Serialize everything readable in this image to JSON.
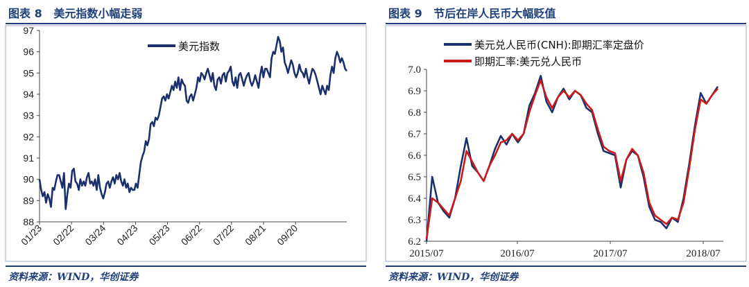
{
  "left": {
    "title": "图表 8   美元指数小幅走弱",
    "source": "资料来源：WIND，华创证券",
    "chart_data": {
      "type": "line",
      "series": [
        {
          "name": "美元指数",
          "color": "#1a2f6b",
          "values": [
            90.0,
            89.5,
            89.2,
            89.4,
            88.9,
            89.3,
            89.1,
            88.7,
            89.6,
            89.5,
            89.9,
            90.2,
            90.2,
            89.9,
            89.6,
            90.3,
            88.6,
            89.3,
            89.8,
            89.6,
            90.4,
            90.5,
            89.9,
            89.8,
            89.5,
            90.0,
            89.7,
            89.9,
            89.7,
            90.1,
            90.3,
            89.8,
            89.9,
            89.7,
            90.0,
            89.5,
            90.2,
            89.6,
            89.3,
            89.1,
            89.4,
            89.8,
            89.9,
            89.6,
            89.9,
            90.1,
            89.8,
            90.2,
            90.0,
            90.3,
            89.9,
            89.7,
            90.0,
            89.6,
            89.8,
            89.4,
            89.6,
            89.5,
            89.5,
            89.8,
            89.6,
            90.2,
            90.8,
            91.1,
            91.3,
            91.8,
            91.6,
            91.9,
            92.6,
            92.7,
            92.5,
            92.9,
            92.8,
            93.0,
            93.4,
            93.8,
            93.9,
            93.7,
            94.0,
            93.8,
            94.1,
            94.4,
            94.2,
            94.6,
            94.3,
            94.8,
            94.2,
            94.7,
            94.5,
            94.4,
            93.7,
            93.6,
            93.9,
            94.0,
            93.7,
            94.0,
            94.3,
            94.8,
            94.6,
            95.0,
            94.9,
            94.7,
            95.0,
            95.2,
            94.9,
            94.6,
            95.0,
            94.4,
            94.2,
            94.7,
            94.8,
            94.5,
            94.9,
            95.0,
            94.6,
            95.0,
            95.1,
            95.3,
            94.6,
            94.4,
            94.8,
            94.3,
            94.9,
            95.0,
            94.7,
            94.4,
            94.7,
            94.9,
            95.0,
            94.6,
            94.4,
            94.6,
            94.9,
            94.6,
            94.3,
            94.9,
            95.3,
            94.8,
            95.2,
            95.2,
            95.0,
            94.8,
            95.7,
            96.0,
            95.9,
            96.3,
            96.7,
            96.5,
            96.0,
            96.2,
            95.5,
            95.3,
            95.0,
            95.3,
            95.6,
            95.4,
            95.0,
            94.8,
            95.0,
            95.4,
            95.1,
            95.0,
            94.8,
            95.2,
            94.8,
            94.5,
            94.9,
            95.2,
            95.1,
            94.9,
            94.6,
            94.3,
            94.0,
            94.4,
            94.2,
            94.0,
            94.4,
            94.2,
            94.9,
            95.3,
            95.0,
            95.7,
            96.0,
            95.8,
            95.5,
            95.7,
            95.5,
            95.2,
            95.1
          ]
        }
      ],
      "xticks": [
        "01/23",
        "02/22",
        "03/24",
        "04/23",
        "05/23",
        "06/22",
        "07/22",
        "08/21",
        "09/20"
      ],
      "ylim": [
        88,
        97
      ],
      "yticks": [
        88,
        89,
        90,
        91,
        92,
        93,
        94,
        95,
        96,
        97
      ],
      "legend_position": "top-center",
      "grid": false
    }
  },
  "right": {
    "title": "图表 9   节后在岸人民币大幅贬值",
    "source": "资料来源：WIND，华创证券",
    "chart_data": {
      "type": "line",
      "series": [
        {
          "name": "美元兑人民币(CNH):即期汇率定盘价",
          "color": "#1a2f6b",
          "values": [
            6.2,
            6.5,
            6.38,
            6.34,
            6.31,
            6.4,
            6.55,
            6.68,
            6.55,
            6.52,
            6.48,
            6.55,
            6.63,
            6.69,
            6.65,
            6.7,
            6.66,
            6.7,
            6.83,
            6.89,
            6.97,
            6.85,
            6.8,
            6.87,
            6.91,
            6.86,
            6.9,
            6.88,
            6.82,
            6.8,
            6.7,
            6.62,
            6.61,
            6.6,
            6.45,
            6.58,
            6.62,
            6.6,
            6.5,
            6.36,
            6.3,
            6.29,
            6.26,
            6.31,
            6.29,
            6.4,
            6.56,
            6.74,
            6.89,
            6.84,
            6.88,
            6.92
          ]
        },
        {
          "name": "即期汇率:美元兑人民币",
          "color": "#cc1a1a",
          "values": [
            6.21,
            6.4,
            6.38,
            6.35,
            6.32,
            6.4,
            6.48,
            6.62,
            6.57,
            6.52,
            6.48,
            6.55,
            6.6,
            6.66,
            6.67,
            6.7,
            6.67,
            6.7,
            6.8,
            6.88,
            6.95,
            6.87,
            6.82,
            6.87,
            6.9,
            6.87,
            6.9,
            6.88,
            6.84,
            6.81,
            6.72,
            6.64,
            6.62,
            6.61,
            6.48,
            6.58,
            6.63,
            6.6,
            6.52,
            6.38,
            6.32,
            6.3,
            6.28,
            6.31,
            6.3,
            6.38,
            6.54,
            6.72,
            6.86,
            6.84,
            6.88,
            6.91
          ]
        }
      ],
      "xticks": [
        "2015/07",
        "2016/07",
        "2017/07",
        "2018/07"
      ],
      "ylim": [
        6.2,
        7.0
      ],
      "yticks": [
        "6.2",
        "6.3",
        "6.4",
        "6.5",
        "6.6",
        "6.7",
        "6.8",
        "6.9",
        "7.0"
      ],
      "legend_position": "top-left",
      "grid": false
    }
  }
}
